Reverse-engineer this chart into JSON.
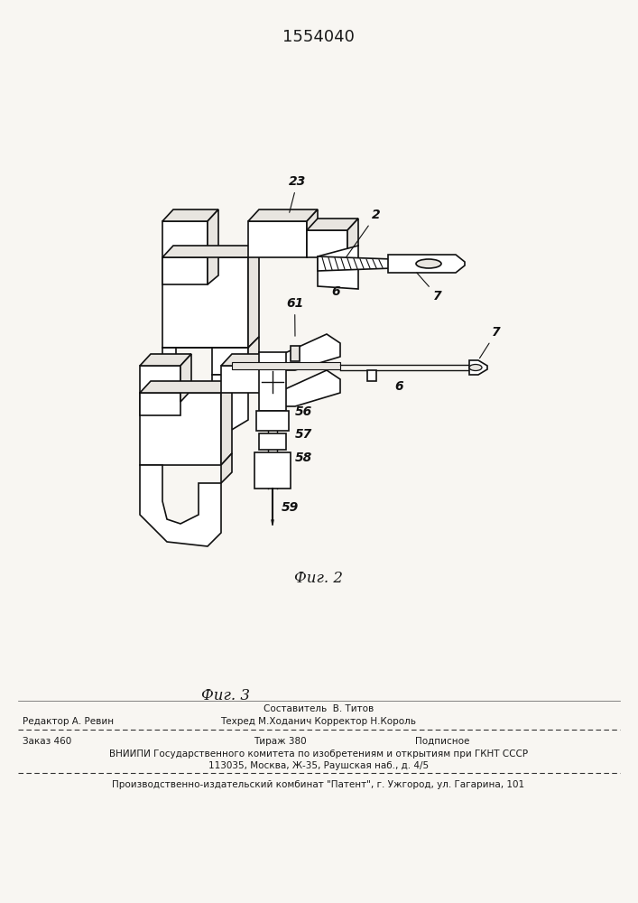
{
  "patent_number": "1554040",
  "fig2_caption": "Фиг. 2",
  "fig3_caption": "Фиг. 3",
  "footer_line1_left": "Редактор А. Ревин",
  "footer_line1_center": "Составитель  В. Титов",
  "footer_line2_center": "Техред М.Ходанич Корректор Н.Король",
  "footer_line3_left": "Заказ 460",
  "footer_line3_center": "Тираж 380",
  "footer_line3_right": "Подписное",
  "footer_line4": "ВНИИПИ Государственного комитета по изобретениям и открытиям при ГКНТ СССР",
  "footer_line5": "113035, Москва, Ж-35, Раушская наб., д. 4/5",
  "footer_line6": "Производственно-издательский комбинат \"Патент\", г. Ужгород, ул. Гагарина, 101",
  "bg_color": "#ffffff",
  "paper_color": "#f8f6f2",
  "text_color": "#1a1a1a",
  "line_color": "#111111",
  "label_color": "#111111",
  "face_color": "#ffffff",
  "shade_color": "#e8e5e0"
}
